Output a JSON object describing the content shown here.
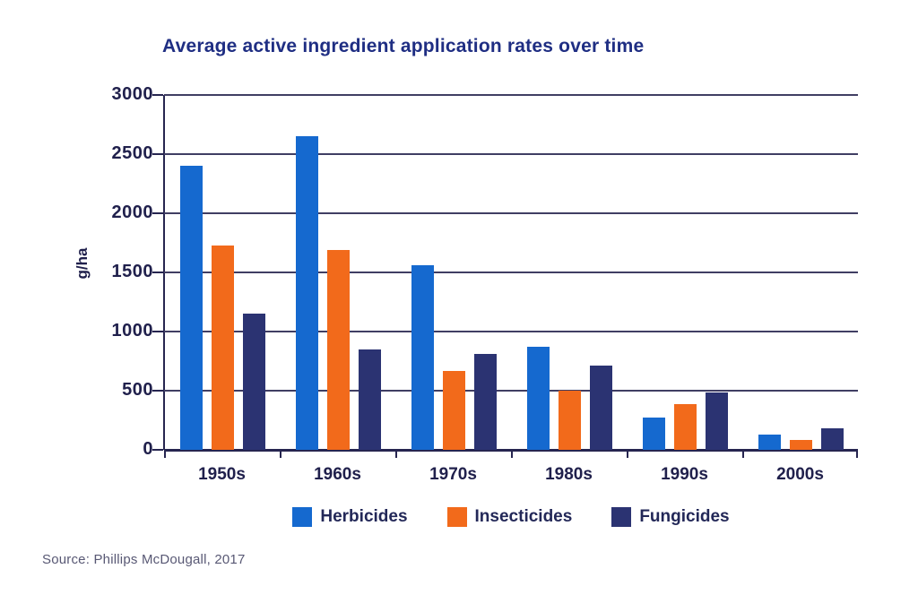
{
  "title": "Average active ingredient application rates over time",
  "source": "Source: Phillips McDougall, 2017",
  "chart_data": {
    "type": "bar",
    "title": "Average active ingredient application rates over time",
    "xlabel": "",
    "ylabel": "g/ha",
    "categories": [
      "1950s",
      "1960s",
      "1970s",
      "1980s",
      "1990s",
      "2000s"
    ],
    "series": [
      {
        "name": "Herbicides",
        "color": "#1569cf",
        "values": [
          2400,
          2650,
          1560,
          875,
          270,
          130
        ]
      },
      {
        "name": "Insecticides",
        "color": "#f26a1b",
        "values": [
          1725,
          1690,
          665,
          500,
          385,
          80
        ]
      },
      {
        "name": "Fungicides",
        "color": "#2b3372",
        "values": [
          1150,
          845,
          810,
          715,
          485,
          185
        ]
      }
    ],
    "ylim": [
      0,
      3000
    ],
    "ytick_step": 500,
    "grid": true,
    "legend_position": "bottom",
    "colors": {
      "title_text": "#1f2e83",
      "axis_text": "#20204c",
      "gridline": "#403e63",
      "axis_line": "#262550",
      "source_text": "#585874",
      "background": "#ffffff"
    }
  }
}
